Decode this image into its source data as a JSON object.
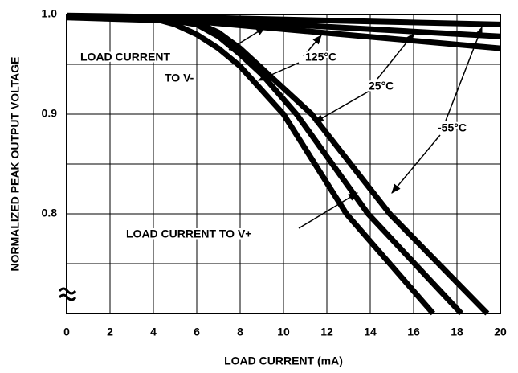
{
  "chart_data": {
    "type": "line",
    "y_label": "NORMALIZED PEAK OUTPUT VOLTAGE",
    "x_label": "LOAD CURRENT (mA)",
    "xlim": [
      0,
      20
    ],
    "xticks": [
      0,
      2,
      4,
      6,
      8,
      10,
      12,
      14,
      16,
      18,
      20
    ],
    "ylim": [
      0.7,
      1.0
    ],
    "yticks": [
      {
        "value": 0.8,
        "label": "0.8"
      },
      {
        "value": 0.9,
        "label": "0.9"
      },
      {
        "value": 1.0,
        "label": "1.0"
      }
    ],
    "ygrid_minor": [
      0.75,
      0.85,
      0.95
    ],
    "grid": true,
    "color": "#000000",
    "series": [
      {
        "x": [
          0,
          4,
          5,
          6,
          7,
          8,
          10,
          12.9,
          16.9
        ],
        "values": [
          0.998,
          0.996,
          0.99,
          0.98,
          0.966,
          0.948,
          0.9,
          0.8,
          0.7
        ]
      },
      {
        "x": [
          0,
          4,
          6,
          7,
          8,
          9,
          10.6,
          13.9,
          18.2
        ],
        "values": [
          0.998,
          0.997,
          0.99,
          0.978,
          0.96,
          0.94,
          0.9,
          0.8,
          0.7
        ]
      },
      {
        "x": [
          0,
          4,
          6,
          7,
          8,
          9,
          11.3,
          14.9,
          19.4
        ],
        "values": [
          0.998,
          0.997,
          0.992,
          0.982,
          0.966,
          0.946,
          0.9,
          0.8,
          0.7
        ]
      },
      {
        "x": [
          0,
          6,
          20
        ],
        "values": [
          0.999,
          0.997,
          0.99
        ]
      },
      {
        "x": [
          0,
          6,
          20
        ],
        "values": [
          0.998,
          0.995,
          0.978
        ]
      },
      {
        "x": [
          0,
          6,
          20
        ],
        "values": [
          0.997,
          0.993,
          0.966
        ]
      }
    ],
    "annotations": [
      {
        "lines": [
          "LOAD CURRENT",
          "TO V-"
        ]
      },
      {
        "lines": [
          "125°C"
        ]
      },
      {
        "lines": [
          "25°C"
        ]
      },
      {
        "lines": [
          "-55°C"
        ]
      },
      {
        "lines": [
          "LOAD CURRENT TO V+"
        ]
      }
    ]
  }
}
